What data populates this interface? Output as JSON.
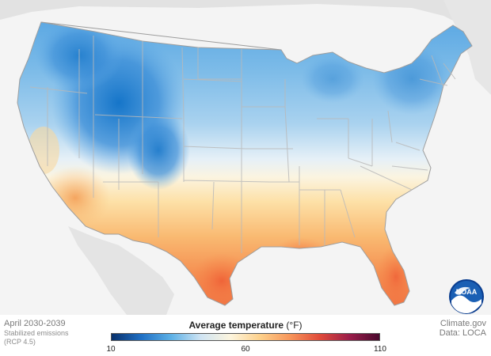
{
  "period": "April 2030-2039",
  "scenario_lines": [
    "Stabilized emissions",
    "(RCP 4.5)"
  ],
  "legend": {
    "title": "Average temperature",
    "unit": "(°F)",
    "ticks": [
      "10",
      "60",
      "110"
    ],
    "min": 10,
    "mid": 60,
    "max": 110,
    "colors": [
      "#08306b",
      "#1f6fc4",
      "#5cb0e6",
      "#cfe4f3",
      "#fdf5de",
      "#fdd08a",
      "#f7955a",
      "#e04a3a",
      "#9a1d4a",
      "#4a0a2e"
    ]
  },
  "source": "Climate.gov",
  "data_credit": "Data: LOCA",
  "logo": {
    "text": "NOAA",
    "icon": "noaa-logo-icon"
  }
}
